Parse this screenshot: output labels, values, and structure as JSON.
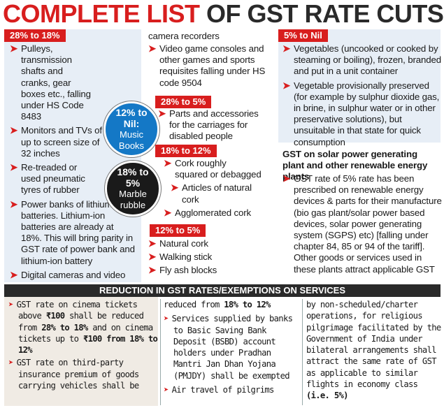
{
  "title": {
    "part1": "COMPLETE LIST",
    "part2": " OF GST RATE CUTS"
  },
  "colors": {
    "accent": "#d81e1e",
    "panel": "#e7eef6",
    "dark": "#2a2a2a",
    "blue_circle": "#1478c6",
    "black_circle": "#1a1a1a"
  },
  "col1": {
    "tag": "28% to 18%",
    "items": [
      "Pulleys, transmission shafts and cranks, gear boxes etc., falling under HS Code 8483",
      "Monitors and TVs of up to screen size of 32 inches",
      "Re-treaded or used pneumatic tyres of rubber",
      "Power banks of lithium-ion batteries. Lithium-ion batteries are already at 18%. This will bring parity in GST rate of power bank and lithium-ion battery",
      "Digital cameras and video"
    ]
  },
  "col2": {
    "cont": "camera recorders",
    "items_top": [
      "Video game consoles and other games and sports requisites falling under HS code 9504"
    ],
    "tag_a": "28% to 5%",
    "items_a": [
      "Parts and accessories for the carriages for disabled people"
    ],
    "tag_b": "18% to 12%",
    "items_b": [
      "Cork roughly squared or debagged",
      "Articles of natural cork",
      "Agglomerated cork"
    ],
    "tag_c": "12% to 5%",
    "items_c": [
      "Natural cork",
      "Walking stick",
      "Fly ash blocks"
    ],
    "circle1": {
      "rate": "12% to",
      "rate2": "Nil:",
      "item": "Music",
      "item2": "Books"
    },
    "circle2": {
      "rate": "18% to",
      "rate2": "5%",
      "item": "Marble",
      "item2": "rubble"
    }
  },
  "col3": {
    "tag": "5% to Nil",
    "items": [
      "Vegetables (uncooked or cooked by steaming or boiling), frozen, branded and put in a unit container",
      "Vegetable provisionally preserved (for example by sulphur dioxide gas, in brine, in sulphur water or in other preservative solutions), but unsuitable in that state for quick consumption"
    ],
    "solar_head": "GST on solar power generating plant and other renewable energy plants",
    "solar_item": "GST rate of  5% rate has been prescribed on renewable energy devices & parts for their manufacture (bio gas plant/solar power based devices, solar power generating system (SGPS) etc) [falling under chapter 84, 85 or 94 of the tariff]. Other goods or services used in these plants attract applicable GST"
  },
  "services": {
    "heading": "REDUCTION IN GST RATES/EXEMPTIONS ON SERVICES",
    "c1": {
      "p1_a": "GST rate on cinema tickets above ",
      "p1_b": "₹100",
      "p1_c": " shall be reduced from ",
      "p1_d": "28% to 18%",
      "p1_e": " and on cinema tickets up to ",
      "p1_f": "₹100 from 18% to 12%",
      "p2": "GST rate on third-party insurance premium of goods carrying vehicles shall be"
    },
    "c2": {
      "cont_a": "reduced from ",
      "cont_b": "18% to 12%",
      "item1": "Services supplied by banks to Basic Saving Bank Deposit (BSBD) account holders under Pradhan Mantri Jan Dhan Yojana (PMJDY) shall be exempted",
      "item2": "Air travel of pilgrims"
    },
    "c3": {
      "text_a": "by non-scheduled/charter operations, for religious pilgrimage facilitated by the Government of India under bilateral arrangements shall attract the same rate of GST as applicable to similar flights in economy class ",
      "text_b": "(i.e. 5%)"
    }
  }
}
